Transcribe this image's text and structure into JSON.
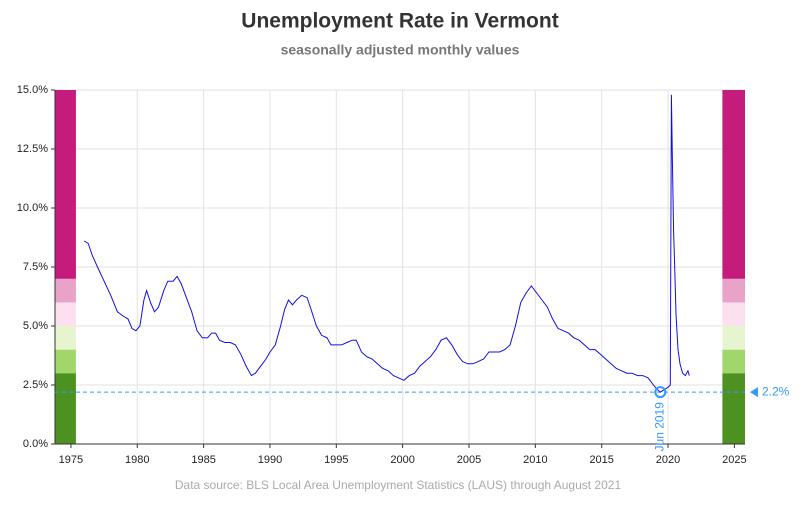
{
  "chart_data": {
    "type": "line",
    "title": "Unemployment Rate in Vermont",
    "subtitle": "seasonally adjusted monthly values",
    "source": "Data source: BLS Local Area Unemployment Statistics (LAUS) through August 2021",
    "xlim": [
      1973.8,
      2025.8
    ],
    "ylim": [
      0,
      15
    ],
    "xticks": [
      1975,
      1980,
      1985,
      1990,
      1995,
      2000,
      2005,
      2010,
      2015,
      2020,
      2025
    ],
    "yticks": [
      {
        "value": 0,
        "label": "0.0%"
      },
      {
        "value": 2.5,
        "label": "2.5%"
      },
      {
        "value": 5,
        "label": "5.0%"
      },
      {
        "value": 7.5,
        "label": "7.5%"
      },
      {
        "value": 10,
        "label": "10.0%"
      },
      {
        "value": 12.5,
        "label": "12.5%"
      },
      {
        "value": 15,
        "label": "15.0%"
      }
    ],
    "grid": true,
    "bands": [
      {
        "from": 0,
        "to": 3,
        "color": "#4d9221"
      },
      {
        "from": 3,
        "to": 4,
        "color": "#a1d76a"
      },
      {
        "from": 4,
        "to": 5,
        "color": "#e6f5d0"
      },
      {
        "from": 5,
        "to": 6,
        "color": "#fde0ef"
      },
      {
        "from": 6,
        "to": 7,
        "color": "#e9a3c9"
      },
      {
        "from": 7,
        "to": 15,
        "color": "#c51b7d"
      }
    ],
    "annotation": {
      "x": 2019.42,
      "x_label": "Jun 2019",
      "value": 2.2,
      "value_label": "2.2%",
      "color": "#3399ff"
    },
    "series": [
      {
        "color": "#1010e0",
        "x": [
          1976.0,
          1976.3,
          1976.6,
          1977.0,
          1977.5,
          1978.0,
          1978.5,
          1979.0,
          1979.3,
          1979.6,
          1979.9,
          1980.2,
          1980.5,
          1980.7,
          1981.0,
          1981.3,
          1981.6,
          1982.0,
          1982.3,
          1982.7,
          1983.0,
          1983.3,
          1983.7,
          1984.1,
          1984.5,
          1984.9,
          1985.3,
          1985.6,
          1985.9,
          1986.2,
          1986.6,
          1987.0,
          1987.4,
          1987.8,
          1988.2,
          1988.6,
          1988.9,
          1989.3,
          1989.7,
          1990.0,
          1990.4,
          1990.8,
          1991.1,
          1991.4,
          1991.7,
          1992.0,
          1992.4,
          1992.8,
          1993.1,
          1993.5,
          1993.9,
          1994.3,
          1994.6,
          1995.0,
          1995.4,
          1995.8,
          1996.2,
          1996.5,
          1996.9,
          1997.3,
          1997.7,
          1998.1,
          1998.5,
          1998.9,
          1999.3,
          1999.7,
          2000.1,
          2000.5,
          2000.9,
          2001.3,
          2001.7,
          2002.1,
          2002.5,
          2002.9,
          2003.3,
          2003.7,
          2004.1,
          2004.5,
          2004.9,
          2005.3,
          2005.7,
          2006.1,
          2006.5,
          2006.9,
          2007.3,
          2007.7,
          2008.1,
          2008.5,
          2008.9,
          2009.3,
          2009.7,
          2010.1,
          2010.5,
          2010.9,
          2011.3,
          2011.7,
          2012.1,
          2012.5,
          2012.9,
          2013.3,
          2013.7,
          2014.1,
          2014.5,
          2014.9,
          2015.3,
          2015.7,
          2016.1,
          2016.5,
          2016.9,
          2017.3,
          2017.7,
          2018.1,
          2018.5,
          2018.9,
          2019.2,
          2019.42,
          2019.7,
          2020.0,
          2020.17,
          2020.25,
          2020.33,
          2020.42,
          2020.5,
          2020.6,
          2020.75,
          2020.9,
          2021.1,
          2021.3,
          2021.5,
          2021.6
        ],
        "values": [
          8.6,
          8.5,
          8.0,
          7.5,
          6.9,
          6.3,
          5.6,
          5.4,
          5.3,
          4.9,
          4.8,
          5.0,
          6.1,
          6.5,
          6.0,
          5.6,
          5.8,
          6.5,
          6.9,
          6.9,
          7.1,
          6.8,
          6.2,
          5.6,
          4.8,
          4.5,
          4.5,
          4.7,
          4.7,
          4.4,
          4.3,
          4.3,
          4.2,
          3.8,
          3.3,
          2.9,
          3.0,
          3.3,
          3.6,
          3.9,
          4.2,
          5.0,
          5.7,
          6.1,
          5.9,
          6.1,
          6.3,
          6.2,
          5.7,
          5.0,
          4.6,
          4.5,
          4.2,
          4.2,
          4.2,
          4.3,
          4.4,
          4.4,
          3.9,
          3.7,
          3.6,
          3.4,
          3.2,
          3.1,
          2.9,
          2.8,
          2.7,
          2.9,
          3.0,
          3.3,
          3.5,
          3.7,
          4.0,
          4.4,
          4.5,
          4.2,
          3.8,
          3.5,
          3.4,
          3.4,
          3.5,
          3.6,
          3.9,
          3.9,
          3.9,
          4.0,
          4.2,
          5.0,
          6.0,
          6.4,
          6.7,
          6.4,
          6.1,
          5.8,
          5.3,
          4.9,
          4.8,
          4.7,
          4.5,
          4.4,
          4.2,
          4.0,
          4.0,
          3.8,
          3.6,
          3.4,
          3.2,
          3.1,
          3.0,
          3.0,
          2.9,
          2.9,
          2.8,
          2.5,
          2.3,
          2.2,
          2.3,
          2.4,
          2.5,
          14.8,
          12.0,
          9.0,
          7.5,
          5.5,
          4.0,
          3.4,
          3.0,
          2.9,
          3.1,
          2.9
        ]
      }
    ]
  }
}
